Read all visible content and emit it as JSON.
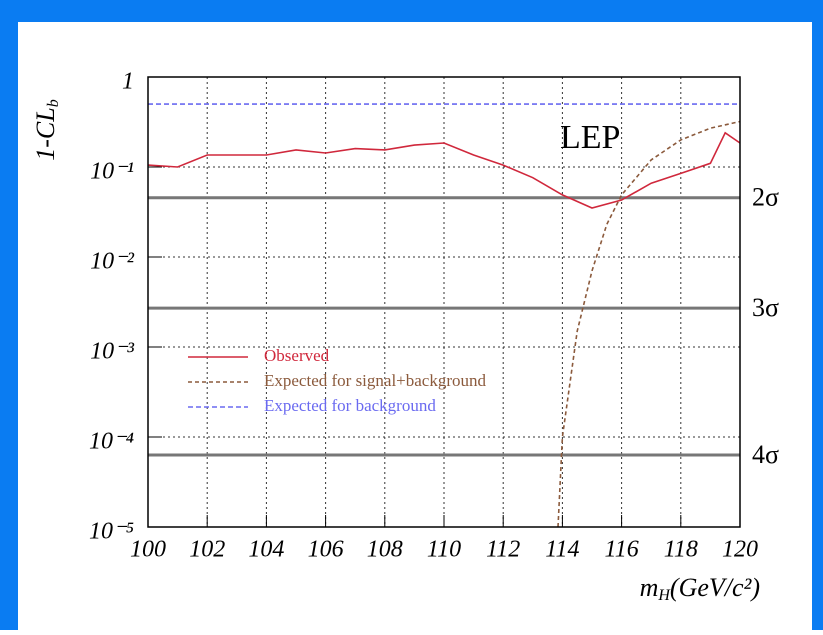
{
  "chart_data": {
    "type": "line",
    "ylabel": [
      "1-CL",
      "b"
    ],
    "xlabel": [
      "m",
      "H",
      "(GeV/c²)"
    ],
    "annotation": "LEP",
    "log_y": true,
    "grid": true,
    "xlim": [
      100,
      120
    ],
    "xticks": [
      100,
      102,
      104,
      106,
      108,
      110,
      112,
      114,
      116,
      118,
      120
    ],
    "ylim": [
      1e-05,
      1
    ],
    "yticks": [
      {
        "value": 1e-05,
        "label": "10⁻⁵"
      },
      {
        "value": 0.0001,
        "label": "10⁻⁴"
      },
      {
        "value": 0.001,
        "label": "10⁻³"
      },
      {
        "value": 0.01,
        "label": "10⁻²"
      },
      {
        "value": 0.1,
        "label": "10⁻¹"
      },
      {
        "value": 1,
        "label": "1"
      }
    ],
    "sigma_lines": [
      {
        "value": 0.0455,
        "label": "2σ"
      },
      {
        "value": 0.0027,
        "label": "3σ"
      },
      {
        "value": 6.3e-05,
        "label": "4σ"
      }
    ],
    "series": [
      {
        "name": "Observed",
        "color": "#d0283c",
        "dash": "none",
        "x": [
          100,
          101,
          102,
          103,
          104,
          105,
          106,
          107,
          108,
          109,
          110,
          111,
          112,
          113,
          114,
          115,
          116,
          117,
          118,
          119,
          119.5,
          120
        ],
        "values": [
          0.105,
          0.1,
          0.136,
          0.136,
          0.136,
          0.155,
          0.143,
          0.16,
          0.155,
          0.175,
          0.185,
          0.136,
          0.105,
          0.076,
          0.049,
          0.035,
          0.043,
          0.066,
          0.085,
          0.11,
          0.24,
          0.185
        ]
      },
      {
        "name": "Expected for signal+background",
        "color": "#8b5a3c",
        "dash": "4 3",
        "x": [
          113.85,
          114,
          114.5,
          115,
          115.5,
          116,
          117,
          118,
          119,
          120
        ],
        "values": [
          1e-05,
          0.0001,
          0.0015,
          0.007,
          0.023,
          0.049,
          0.12,
          0.2,
          0.27,
          0.32
        ]
      },
      {
        "name": "Expected for background",
        "color": "#6a6af0",
        "dash": "5 3",
        "x": [
          100,
          120
        ],
        "values": [
          0.5,
          0.5
        ]
      }
    ]
  }
}
